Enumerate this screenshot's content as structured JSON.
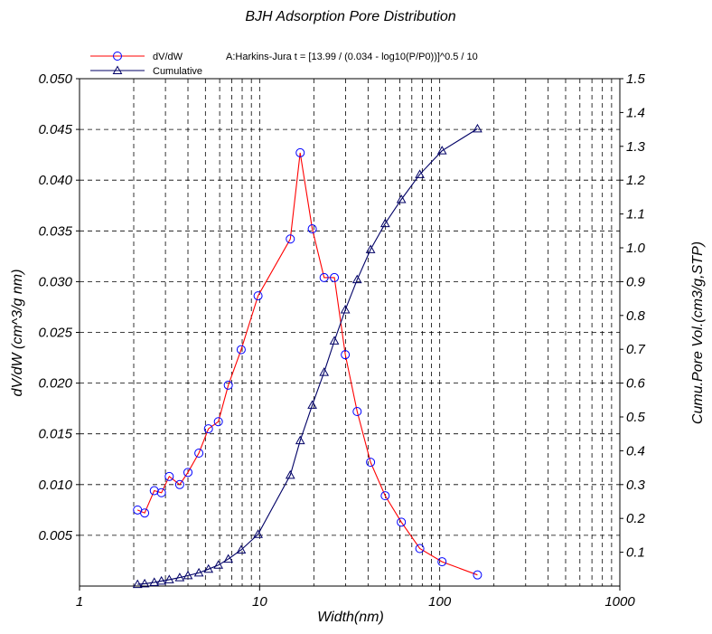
{
  "chart_data": {
    "type": "line",
    "title": "BJH Adsorption Pore Distribution",
    "xlabel": "Width(nm)",
    "ylabel": "dV/dW (cm^3/g nm)",
    "y2label": "Cumu.Pore Vol.(cm3/g,STP)",
    "xscale": "log",
    "xlim": [
      1,
      1000
    ],
    "ylim": [
      0,
      0.05
    ],
    "y2lim": [
      0,
      1.5
    ],
    "x_ticks": [
      "1",
      "10",
      "100",
      "1000"
    ],
    "y_ticks": [
      "0.050",
      "0.045",
      "0.040",
      "0.035",
      "0.030",
      "0.025",
      "0.020",
      "0.015",
      "0.010",
      "0.005"
    ],
    "y2_ticks": [
      "1.5",
      "1.4",
      "1.3",
      "1.2",
      "1.1",
      "1.0",
      "0.9",
      "0.8",
      "0.7",
      "0.6",
      "0.5",
      "0.4",
      "0.3",
      "0.2",
      "0.1"
    ],
    "grid": true,
    "legend_position": "top-left",
    "method_note": "A:Harkins-Jura  t = [13.99 / (0.034 - log10(P/P0))]^0.5 / 10",
    "series": [
      {
        "name": "dV/dW",
        "axis": "left",
        "color": "#ff0000",
        "marker": "circle",
        "x": [
          2.1,
          2.3,
          2.6,
          2.85,
          3.15,
          3.6,
          4.0,
          4.6,
          5.2,
          5.9,
          6.7,
          7.9,
          9.8,
          14.8,
          16.8,
          19.6,
          22.8,
          26.0,
          29.9,
          34.8,
          41.3,
          49.8,
          61.2,
          77.5,
          103,
          162
        ],
        "y": [
          0.0075,
          0.0072,
          0.0094,
          0.0092,
          0.0108,
          0.01,
          0.0112,
          0.0131,
          0.0155,
          0.0162,
          0.0198,
          0.0233,
          0.0286,
          0.0342,
          0.0427,
          0.0352,
          0.0304,
          0.0304,
          0.0228,
          0.0172,
          0.0122,
          0.0089,
          0.0063,
          0.0037,
          0.0024,
          0.0011
        ]
      },
      {
        "name": "Cumulative",
        "axis": "right",
        "color": "#000066",
        "marker": "triangle",
        "x": [
          2.1,
          2.3,
          2.6,
          2.85,
          3.15,
          3.6,
          4.0,
          4.6,
          5.2,
          5.9,
          6.7,
          7.9,
          9.8,
          14.8,
          16.8,
          19.6,
          22.8,
          26.0,
          29.9,
          34.8,
          41.3,
          49.8,
          61.2,
          77.5,
          103,
          162
        ],
        "y": [
          0.005,
          0.007,
          0.011,
          0.015,
          0.019,
          0.025,
          0.031,
          0.039,
          0.05,
          0.062,
          0.08,
          0.107,
          0.153,
          0.328,
          0.43,
          0.535,
          0.632,
          0.725,
          0.817,
          0.906,
          0.995,
          1.072,
          1.143,
          1.217,
          1.287,
          1.352
        ]
      }
    ]
  }
}
